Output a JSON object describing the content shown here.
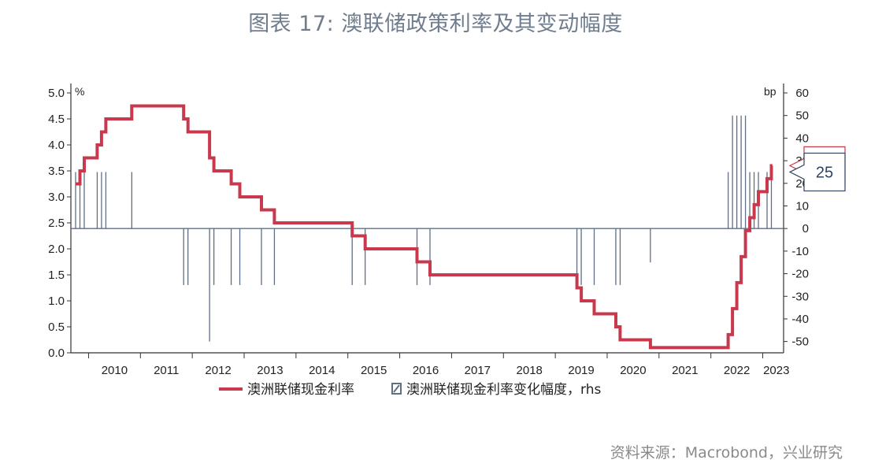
{
  "title": "图表 17: 澳联储政策利率及其变动幅度",
  "source": "资料来源：Macrobond，兴业研究",
  "colors": {
    "rate": "#c8394e",
    "change": "#5f6f85",
    "axis": "#333333"
  },
  "chart_data": {
    "type": "line",
    "left_axis": {
      "unit": "%",
      "range": [
        0,
        5
      ],
      "ticks": [
        "0.0",
        "0.5",
        "1.0",
        "1.5",
        "2.0",
        "2.5",
        "3.0",
        "3.5",
        "4.0",
        "4.5",
        "5.0"
      ]
    },
    "right_axis": {
      "unit": "bp",
      "range": [
        -55,
        60
      ],
      "ticks": [
        "-50",
        "-40",
        "-30",
        "-20",
        "-10",
        "0",
        "10",
        "20",
        "30",
        "40",
        "50",
        "60"
      ]
    },
    "x_axis": {
      "range": [
        2009.75,
        2023.25
      ],
      "year_labels": [
        "2010",
        "2011",
        "2012",
        "2013",
        "2014",
        "2015",
        "2016",
        "2017",
        "2018",
        "2019",
        "2020",
        "2021",
        "2022",
        "2023"
      ]
    },
    "legend": [
      "澳洲联储现金利率",
      "澳洲联储现金利率变化幅度，rhs"
    ],
    "series": [
      {
        "name": "澳洲联储现金利率",
        "axis": "left",
        "style": "step",
        "points": [
          [
            "2009-10",
            3.25
          ],
          [
            "2009-11",
            3.5
          ],
          [
            "2009-12",
            3.75
          ],
          [
            "2010-03",
            4.0
          ],
          [
            "2010-04",
            4.25
          ],
          [
            "2010-05",
            4.5
          ],
          [
            "2010-11",
            4.75
          ],
          [
            "2011-11",
            4.5
          ],
          [
            "2011-12",
            4.25
          ],
          [
            "2012-05",
            3.75
          ],
          [
            "2012-06",
            3.5
          ],
          [
            "2012-10",
            3.25
          ],
          [
            "2012-12",
            3.0
          ],
          [
            "2013-05",
            2.75
          ],
          [
            "2013-08",
            2.5
          ],
          [
            "2015-02",
            2.25
          ],
          [
            "2015-05",
            2.0
          ],
          [
            "2016-05",
            1.75
          ],
          [
            "2016-08",
            1.5
          ],
          [
            "2019-06",
            1.25
          ],
          [
            "2019-07",
            1.0
          ],
          [
            "2019-10",
            0.75
          ],
          [
            "2020-03",
            0.5
          ],
          [
            "2020-04",
            0.25
          ],
          [
            "2020-11",
            0.1
          ],
          [
            "2022-05",
            0.35
          ],
          [
            "2022-06",
            0.85
          ],
          [
            "2022-07",
            1.35
          ],
          [
            "2022-08",
            1.85
          ],
          [
            "2022-09",
            2.35
          ],
          [
            "2022-10",
            2.6
          ],
          [
            "2022-11",
            2.85
          ],
          [
            "2022-12",
            3.1
          ],
          [
            "2023-02",
            3.35
          ],
          [
            "2023-03",
            3.6
          ]
        ],
        "end_label": "3.6"
      },
      {
        "name": "澳洲联储现金利率变化幅度，rhs",
        "axis": "right",
        "style": "spikes",
        "points": [
          [
            "2009-10",
            25
          ],
          [
            "2009-11",
            25
          ],
          [
            "2009-12",
            25
          ],
          [
            "2010-03",
            25
          ],
          [
            "2010-04",
            25
          ],
          [
            "2010-05",
            25
          ],
          [
            "2010-11",
            25
          ],
          [
            "2011-11",
            -25
          ],
          [
            "2011-12",
            -25
          ],
          [
            "2012-05",
            -50
          ],
          [
            "2012-06",
            -25
          ],
          [
            "2012-10",
            -25
          ],
          [
            "2012-12",
            -25
          ],
          [
            "2013-05",
            -25
          ],
          [
            "2013-08",
            -25
          ],
          [
            "2015-02",
            -25
          ],
          [
            "2015-05",
            -25
          ],
          [
            "2016-05",
            -25
          ],
          [
            "2016-08",
            -25
          ],
          [
            "2019-06",
            -25
          ],
          [
            "2019-07",
            -25
          ],
          [
            "2019-10",
            -25
          ],
          [
            "2020-03",
            -25
          ],
          [
            "2020-04",
            -25
          ],
          [
            "2020-11",
            -15
          ],
          [
            "2022-05",
            25
          ],
          [
            "2022-06",
            50
          ],
          [
            "2022-07",
            50
          ],
          [
            "2022-08",
            50
          ],
          [
            "2022-09",
            50
          ],
          [
            "2022-10",
            25
          ],
          [
            "2022-11",
            25
          ],
          [
            "2022-12",
            25
          ],
          [
            "2023-02",
            25
          ],
          [
            "2023-03",
            25
          ]
        ],
        "end_label": "25"
      }
    ]
  }
}
